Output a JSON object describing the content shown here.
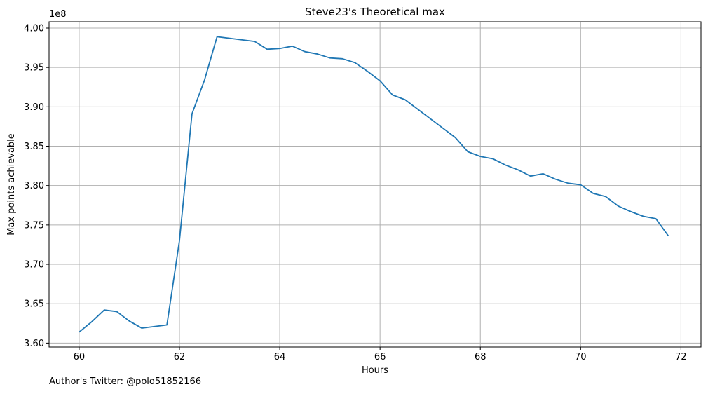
{
  "chart_data": {
    "type": "line",
    "title": "Steve23's Theoretical max",
    "xlabel": "Hours",
    "ylabel": "Max points achievable",
    "y_offset_label": "1e8",
    "xlim": [
      59.4,
      72.4
    ],
    "ylim": [
      359500000,
      400800000
    ],
    "x_ticks": [
      60,
      62,
      64,
      66,
      68,
      70,
      72
    ],
    "x_tick_labels": [
      "60",
      "62",
      "64",
      "66",
      "68",
      "70",
      "72"
    ],
    "y_ticks": [
      360000000,
      365000000,
      370000000,
      375000000,
      380000000,
      385000000,
      390000000,
      395000000,
      400000000
    ],
    "y_tick_labels": [
      "3.60",
      "3.65",
      "3.70",
      "3.75",
      "3.80",
      "3.85",
      "3.90",
      "3.95",
      "4.00"
    ],
    "grid": true,
    "line_color": "#1f77b4",
    "series": [
      {
        "x": [
          60.0,
          60.25,
          60.5,
          60.75,
          61.0,
          61.25,
          61.5,
          61.75,
          62.0,
          62.25,
          62.5,
          62.75,
          63.0,
          63.25,
          63.5,
          63.75,
          64.0,
          64.25,
          64.5,
          64.75,
          65.0,
          65.25,
          65.5,
          65.75,
          66.0,
          66.25,
          66.5,
          66.75,
          67.0,
          67.25,
          67.5,
          67.75,
          68.0,
          68.25,
          68.5,
          68.75,
          69.0,
          69.25,
          69.5,
          69.75,
          70.0,
          70.25,
          70.5,
          70.75,
          71.0,
          71.25,
          71.5,
          71.75
        ],
        "y": [
          361400000,
          362700000,
          364200000,
          364000000,
          362800000,
          361900000,
          362100000,
          362300000,
          373000000,
          389100000,
          393400000,
          398900000,
          398700000,
          398500000,
          398300000,
          397300000,
          397400000,
          397700000,
          397000000,
          396700000,
          396200000,
          396100000,
          395600000,
          394500000,
          393300000,
          391500000,
          390900000,
          389700000,
          388500000,
          387300000,
          386100000,
          384300000,
          383700000,
          383400000,
          382600000,
          382000000,
          381200000,
          381500000,
          380800000,
          380300000,
          380100000,
          379000000,
          378600000,
          377400000,
          376700000,
          376100000,
          375800000,
          373600000
        ]
      }
    ]
  },
  "footer": {
    "credit": "Author's Twitter: @polo51852166"
  }
}
